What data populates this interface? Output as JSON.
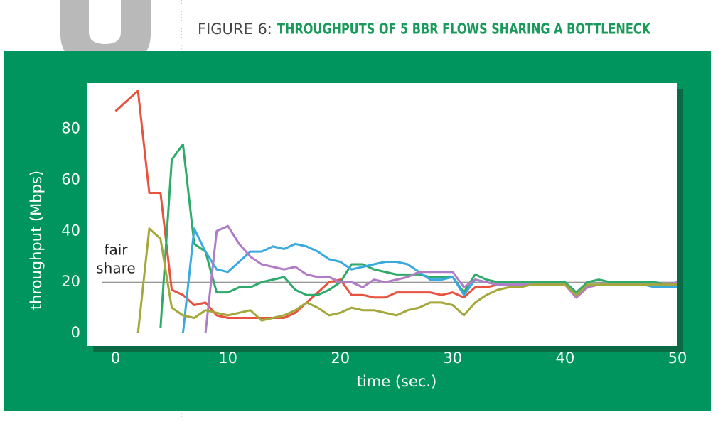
{
  "chart_data": {
    "type": "line",
    "title_prefix": "FIGURE 6:",
    "title": "THROUGHPUTS OF 5 BBR FLOWS SHARING A BOTTLENECK",
    "x_label": "time (sec.)",
    "y_label": "throughput (Mbps)",
    "xlim": [
      -2.5,
      50
    ],
    "ylim": [
      -5,
      98
    ],
    "xticks": [
      0,
      10,
      20,
      30,
      40,
      50
    ],
    "yticks": [
      0,
      20,
      40,
      60,
      80
    ],
    "reference_line": {
      "y": 20,
      "label": [
        "fair",
        "share"
      ]
    },
    "x": [
      0,
      1,
      2,
      3,
      4,
      5,
      6,
      7,
      8,
      9,
      10,
      11,
      12,
      13,
      14,
      15,
      16,
      17,
      18,
      19,
      20,
      21,
      22,
      23,
      24,
      25,
      26,
      27,
      28,
      29,
      30,
      31,
      32,
      33,
      34,
      35,
      36,
      37,
      38,
      39,
      40,
      41,
      42,
      43,
      44,
      45,
      46,
      47,
      48,
      49,
      50
    ],
    "series": [
      {
        "color": "#e8533f",
        "values": [
          87,
          91,
          95,
          55,
          55,
          17,
          15,
          11,
          12,
          7,
          6,
          6,
          6,
          6,
          6,
          6,
          8,
          12,
          16,
          20,
          21,
          15,
          15,
          14,
          14,
          16,
          16,
          16,
          16,
          15,
          16,
          14,
          18,
          18,
          19,
          19,
          19,
          19,
          19,
          19,
          19,
          14,
          18,
          19,
          19,
          19,
          19,
          19,
          19,
          19,
          19
        ]
      },
      {
        "color": "#2eaa6a",
        "values": [
          null,
          null,
          null,
          null,
          2,
          68,
          74,
          35,
          32,
          16,
          16,
          18,
          18,
          20,
          21,
          22,
          17,
          15,
          15,
          17,
          20,
          27,
          27,
          25,
          24,
          23,
          23,
          23,
          22,
          22,
          22,
          16,
          23,
          21,
          20,
          20,
          20,
          20,
          20,
          20,
          20,
          16,
          20,
          21,
          20,
          20,
          20,
          20,
          20,
          19,
          19
        ]
      },
      {
        "color": "#3aa9df",
        "values": [
          null,
          null,
          null,
          null,
          null,
          null,
          0,
          41,
          32,
          25,
          24,
          28,
          32,
          32,
          34,
          33,
          35,
          34,
          32,
          29,
          28,
          25,
          26,
          27,
          28,
          28,
          27,
          24,
          21,
          21,
          22,
          15,
          21,
          20,
          19,
          19,
          19,
          19,
          19,
          19,
          19,
          15,
          19,
          19,
          19,
          19,
          19,
          19,
          18,
          18,
          18
        ]
      },
      {
        "color": "#b07cc6",
        "values": [
          null,
          null,
          null,
          null,
          null,
          null,
          null,
          null,
          0,
          40,
          42,
          35,
          30,
          27,
          26,
          25,
          26,
          23,
          22,
          22,
          20,
          20,
          18,
          21,
          20,
          21,
          22,
          24,
          24,
          24,
          24,
          18,
          21,
          20,
          19,
          19,
          19,
          19,
          19,
          19,
          19,
          14,
          18,
          19,
          19,
          19,
          19,
          19,
          19,
          19,
          20
        ]
      },
      {
        "color": "#a4a83a",
        "values": [
          null,
          null,
          0,
          41,
          37,
          10,
          7,
          6,
          9,
          8,
          7,
          8,
          9,
          5,
          6,
          7,
          9,
          12,
          10,
          7,
          8,
          10,
          9,
          9,
          8,
          7,
          9,
          10,
          12,
          12,
          11,
          7,
          12,
          15,
          17,
          18,
          18,
          19,
          19,
          19,
          19,
          15,
          19,
          19,
          19,
          19,
          19,
          19,
          19,
          19,
          19
        ]
      }
    ]
  }
}
